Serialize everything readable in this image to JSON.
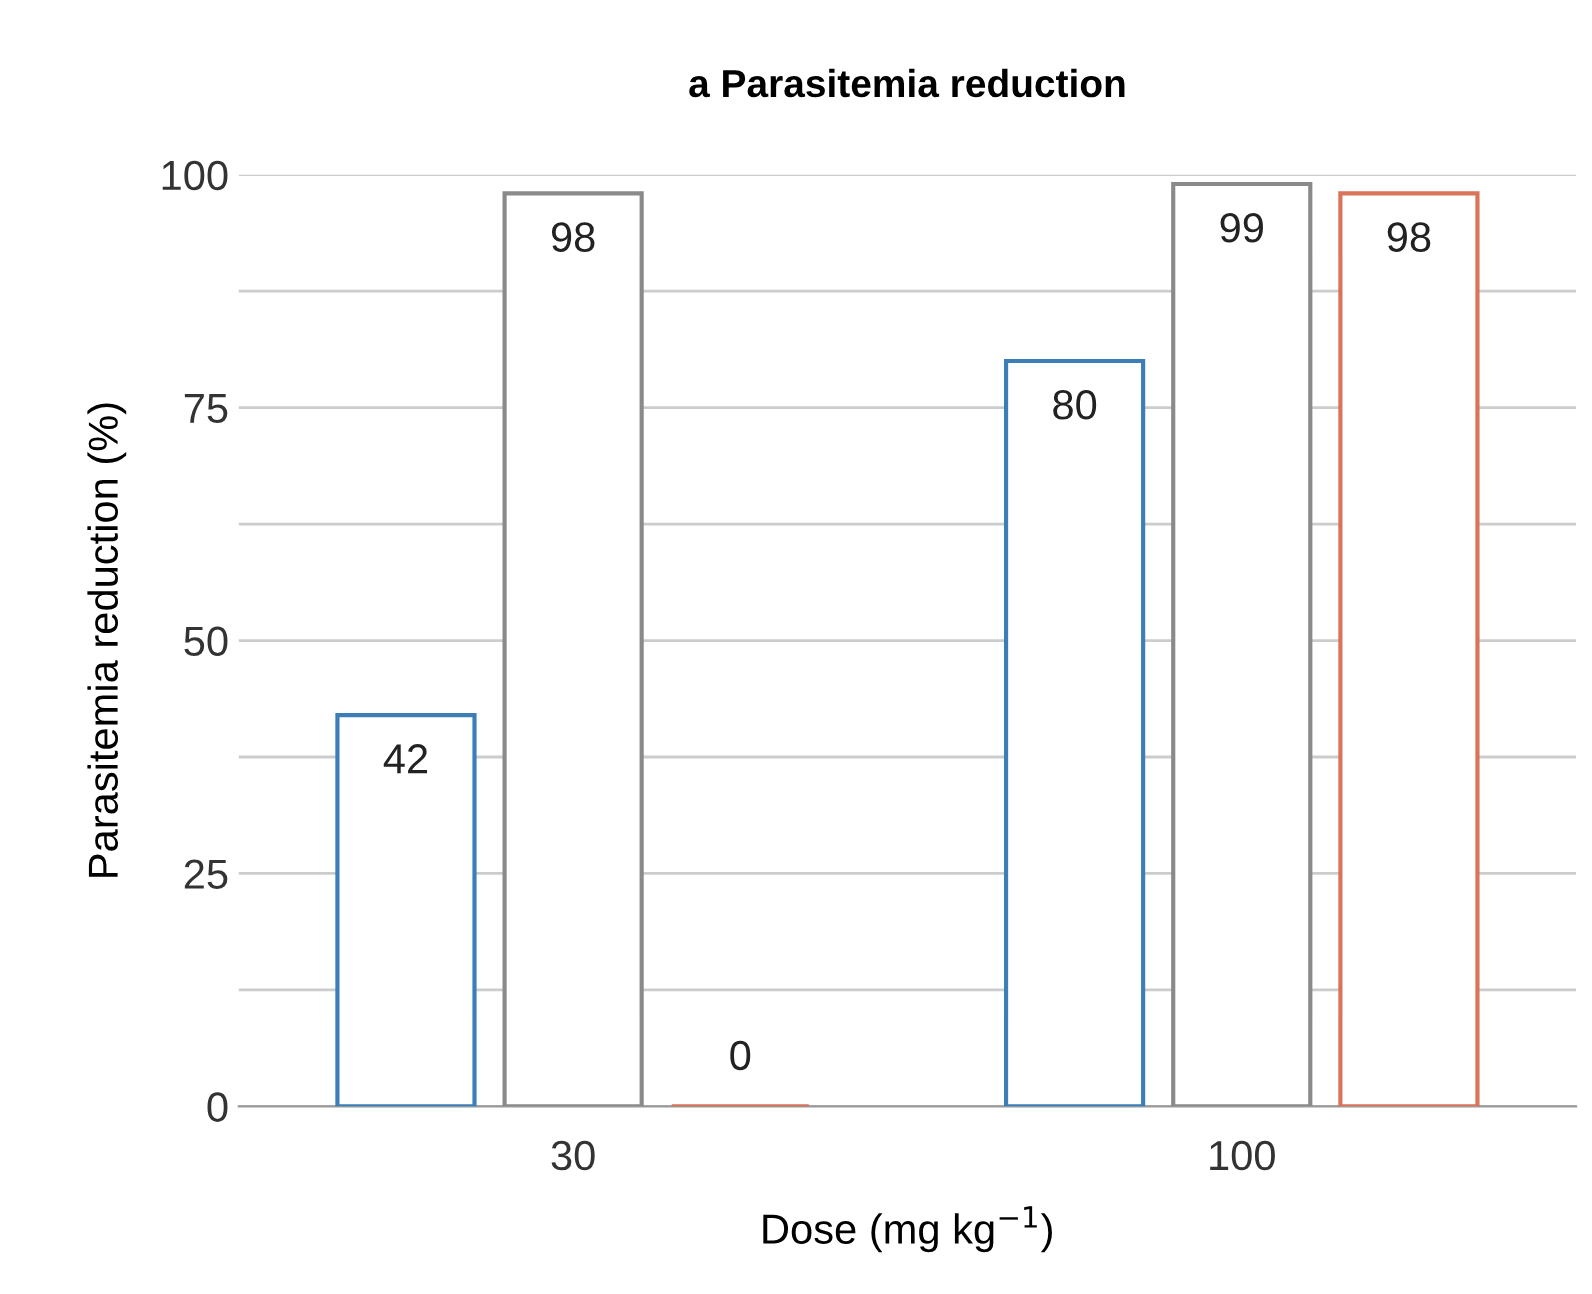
{
  "chart_data": {
    "type": "bar",
    "title": "a Parasitemia reduction",
    "xlabel": "Dose (mg kg$^{−1}$)",
    "ylabel": "Parasitemia reduction (%)",
    "categories": [
      "30",
      "100"
    ],
    "series": [
      {
        "color": "#3c7fb8",
        "values": [
          42,
          80
        ]
      },
      {
        "color": "#8a8a8a",
        "values": [
          98,
          99
        ]
      },
      {
        "color": "#d9735a",
        "values": [
          0,
          98
        ]
      }
    ],
    "ylim": [
      0,
      100
    ],
    "yticks": [
      0,
      {
        "value": 12.5,
        "label": null
      },
      25,
      {
        "value": 37.5,
        "label": null
      },
      50,
      {
        "value": 62.5,
        "label": null
      },
      75,
      {
        "value": 87.5,
        "label": null
      },
      100
    ],
    "grid": "y",
    "data_labels": true
  }
}
